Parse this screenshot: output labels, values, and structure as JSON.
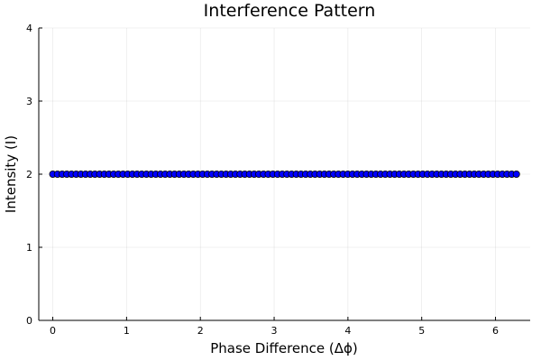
{
  "chart_data": {
    "type": "scatter",
    "title": "Interference Pattern",
    "xlabel": "Phase Difference (Δϕ)",
    "ylabel": "Intensity (I)",
    "xlim": [
      -0.19,
      6.47
    ],
    "ylim": [
      0,
      4
    ],
    "xticks": [
      0,
      1,
      2,
      3,
      4,
      5,
      6
    ],
    "yticks": [
      0,
      1,
      2,
      3,
      4
    ],
    "grid": true,
    "legend": "none",
    "point_color": "#0000ff",
    "series": [
      {
        "x_start": 0,
        "x_end": 6.283185,
        "num_points": 100,
        "y_constant": 2
      }
    ]
  }
}
